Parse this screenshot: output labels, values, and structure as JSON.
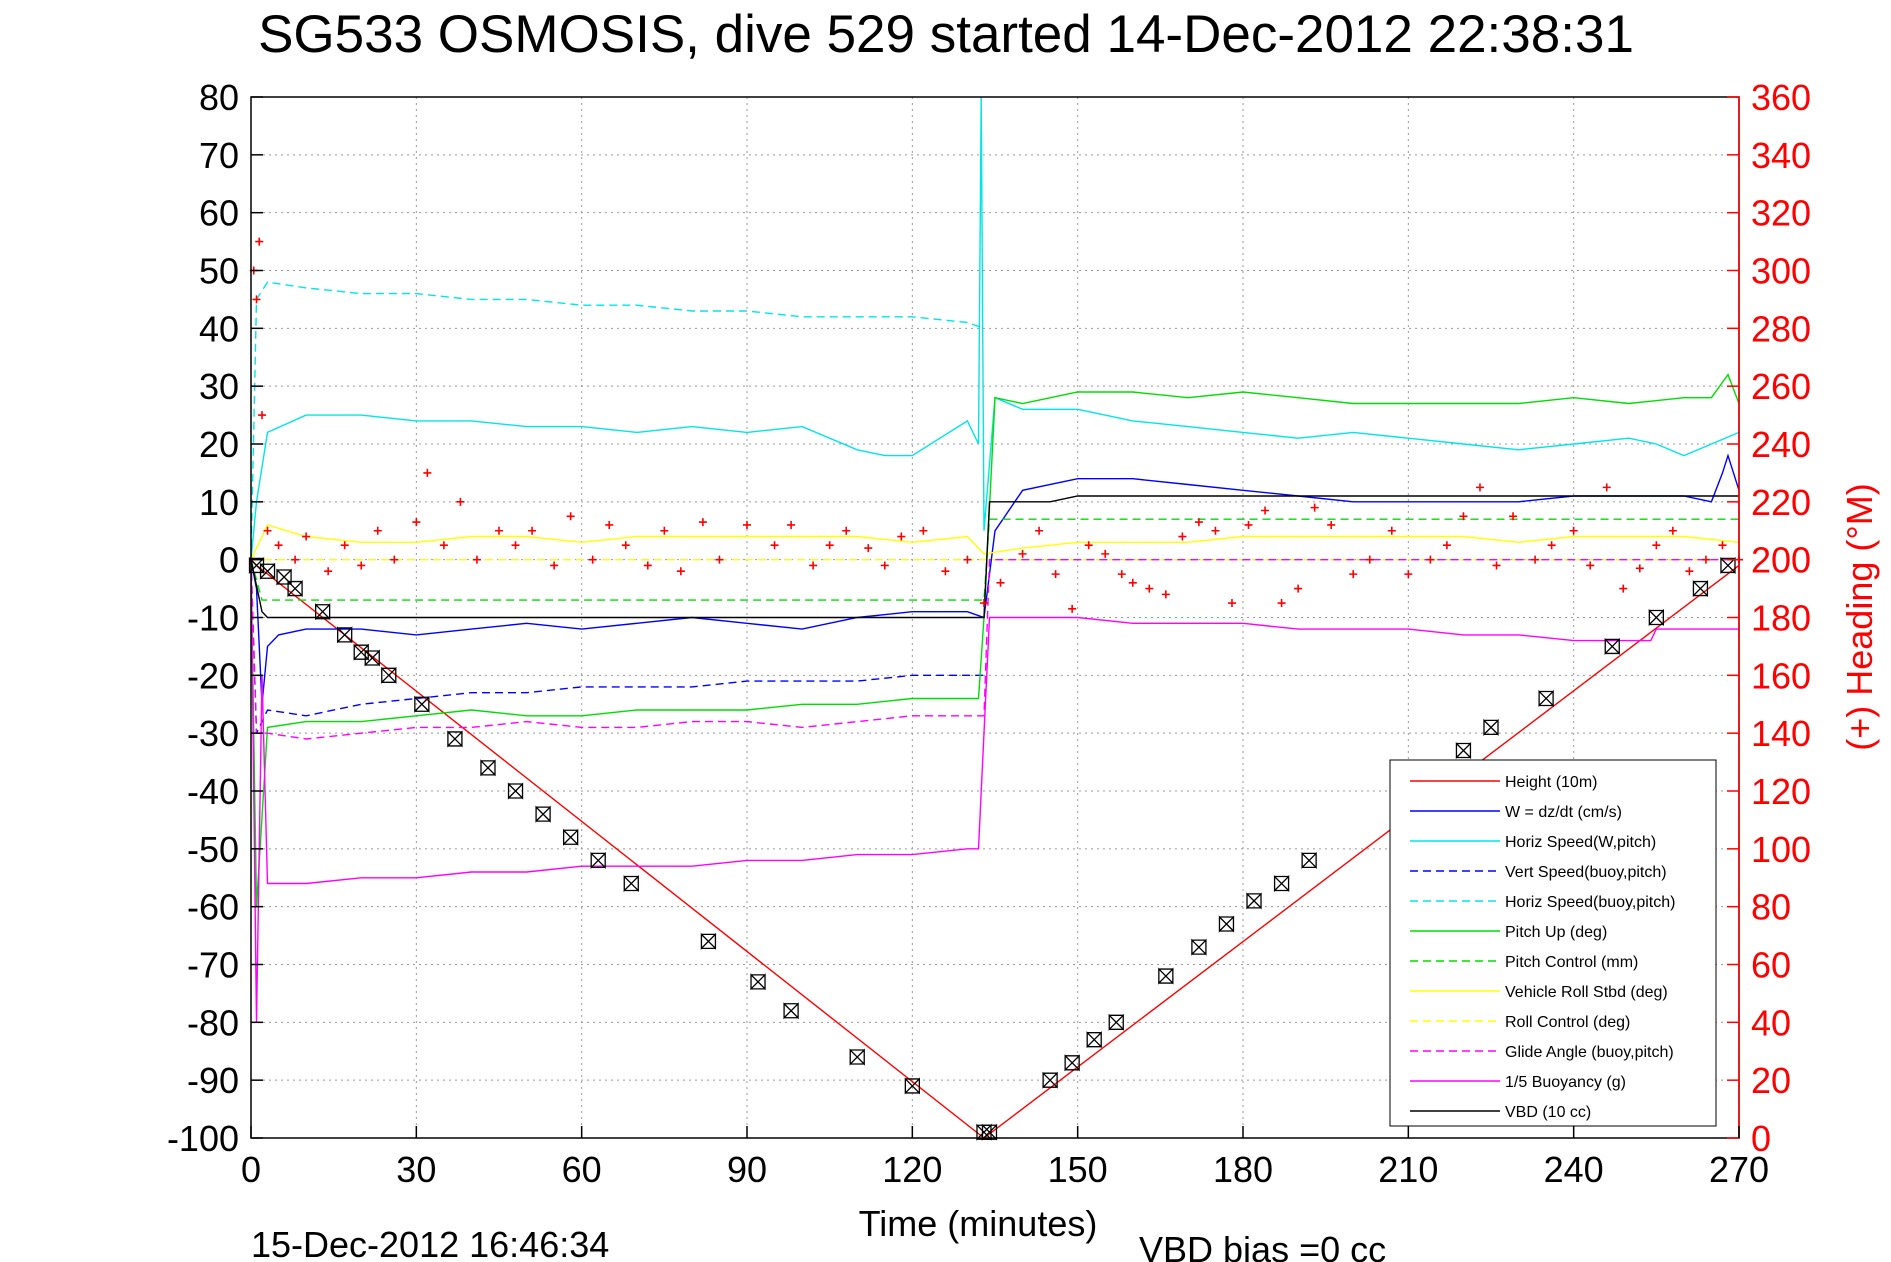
{
  "chart_data": {
    "type": "line",
    "title": "SG533 OSMOSIS, dive 529 started 14-Dec-2012 22:38:31",
    "xlabel": "Time (minutes)",
    "ylabel": "",
    "ylabel_right": "(+) Heading (°M)",
    "xlim": [
      0,
      270
    ],
    "ylim": [
      -100,
      80
    ],
    "ylim_right": [
      0,
      360
    ],
    "xticks": [
      "0",
      "30",
      "60",
      "90",
      "120",
      "150",
      "180",
      "210",
      "240",
      "270"
    ],
    "yticks": [
      "80",
      "70",
      "60",
      "50",
      "40",
      "30",
      "20",
      "10",
      "0",
      "-10",
      "-20",
      "-30",
      "-40",
      "-50",
      "-60",
      "-70",
      "-80",
      "-90",
      "-100"
    ],
    "yticks_right": [
      "360",
      "340",
      "320",
      "300",
      "280",
      "260",
      "240",
      "220",
      "200",
      "180",
      "160",
      "140",
      "120",
      "100",
      "80",
      "60",
      "40",
      "20",
      "0"
    ],
    "grid": true,
    "legend_position": "bottom-right",
    "footer_left": "15-Dec-2012 16:46:34",
    "footer_right": "VBD bias =0 cc",
    "series": [
      {
        "name": "Height (10m)",
        "color": "#ff0000",
        "style": "solid",
        "x": [
          0,
          1,
          133,
          270
        ],
        "y": [
          0,
          -1,
          -100,
          -1
        ]
      },
      {
        "name": "W = dz/dt (cm/s)",
        "color": "#0000ff",
        "style": "solid",
        "x": [
          0,
          1,
          2,
          3,
          5,
          10,
          20,
          30,
          40,
          50,
          60,
          70,
          80,
          90,
          100,
          110,
          120,
          130,
          133,
          135,
          140,
          150,
          160,
          170,
          180,
          190,
          200,
          210,
          220,
          230,
          240,
          250,
          260,
          265,
          267,
          268,
          270
        ],
        "y": [
          0,
          -5,
          -25,
          -15,
          -13,
          -12,
          -12,
          -13,
          -12,
          -11,
          -12,
          -11,
          -10,
          -11,
          -12,
          -10,
          -9,
          -9,
          -10,
          5,
          12,
          14,
          14,
          13,
          12,
          11,
          10,
          10,
          10,
          10,
          11,
          11,
          11,
          10,
          15,
          18,
          12
        ]
      },
      {
        "name": "Horiz Speed(W,pitch)",
        "color": "#00e5e5",
        "style": "solid",
        "x": [
          0,
          1,
          3,
          10,
          20,
          30,
          40,
          50,
          60,
          70,
          80,
          90,
          100,
          110,
          115,
          120,
          130,
          132,
          132.5,
          133,
          135,
          140,
          150,
          160,
          170,
          180,
          190,
          200,
          210,
          220,
          230,
          240,
          250,
          255,
          260,
          265,
          270
        ],
        "y": [
          0,
          10,
          22,
          25,
          25,
          24,
          24,
          23,
          23,
          22,
          23,
          22,
          23,
          19,
          18,
          18,
          24,
          20,
          80,
          5,
          28,
          26,
          26,
          24,
          23,
          22,
          21,
          22,
          21,
          20,
          19,
          20,
          21,
          20,
          18,
          20,
          22
        ]
      },
      {
        "name": "Vert Speed(buoy,pitch)",
        "color": "#0000ff",
        "style": "dashed",
        "x": [
          0,
          1,
          3,
          10,
          20,
          30,
          40,
          50,
          60,
          70,
          80,
          90,
          100,
          110,
          120,
          130,
          133
        ],
        "y": [
          0,
          -30,
          -26,
          -27,
          -25,
          -24,
          -23,
          -23,
          -22,
          -22,
          -22,
          -21,
          -21,
          -21,
          -20,
          -20,
          -20
        ]
      },
      {
        "name": "Horiz Speed(buoy,pitch)",
        "color": "#00e5e5",
        "style": "dashed",
        "x": [
          0,
          1,
          3,
          10,
          20,
          30,
          40,
          50,
          60,
          70,
          80,
          90,
          100,
          110,
          120,
          130,
          133
        ],
        "y": [
          0,
          45,
          48,
          47,
          46,
          46,
          45,
          45,
          44,
          44,
          43,
          43,
          42,
          42,
          42,
          41,
          40
        ]
      },
      {
        "name": "Pitch Up (deg)",
        "color": "#00dd00",
        "style": "solid",
        "x": [
          0,
          1,
          3,
          10,
          20,
          30,
          40,
          50,
          60,
          70,
          80,
          90,
          100,
          110,
          120,
          130,
          132,
          133,
          135,
          140,
          150,
          160,
          170,
          180,
          190,
          200,
          210,
          220,
          230,
          240,
          250,
          260,
          265,
          268,
          270
        ],
        "y": [
          0,
          -60,
          -29,
          -28,
          -28,
          -27,
          -26,
          -27,
          -27,
          -26,
          -26,
          -26,
          -25,
          -25,
          -24,
          -24,
          -24,
          -10,
          28,
          27,
          29,
          29,
          28,
          29,
          28,
          27,
          27,
          27,
          27,
          28,
          27,
          28,
          28,
          32,
          27
        ]
      },
      {
        "name": "Pitch Control (mm)",
        "color": "#00dd00",
        "style": "dashed",
        "x": [
          0,
          2,
          133,
          134,
          270
        ],
        "y": [
          0,
          -7,
          -7,
          7,
          7
        ]
      },
      {
        "name": "Vehicle Roll Stbd (deg)",
        "color": "#ffff00",
        "style": "solid",
        "x": [
          0,
          3,
          10,
          20,
          30,
          40,
          50,
          60,
          70,
          80,
          90,
          100,
          110,
          120,
          130,
          133,
          140,
          150,
          160,
          170,
          180,
          190,
          200,
          210,
          220,
          230,
          240,
          250,
          260,
          270
        ],
        "y": [
          0,
          6,
          4,
          3,
          3,
          4,
          4,
          3,
          4,
          4,
          4,
          4,
          4,
          3,
          4,
          1,
          2,
          3,
          3,
          3,
          4,
          4,
          4,
          4,
          4,
          3,
          4,
          4,
          4,
          3
        ]
      },
      {
        "name": "Roll Control (deg)",
        "color": "#ffff00",
        "style": "dashed",
        "x": [
          0,
          3,
          133,
          270
        ],
        "y": [
          0,
          0,
          0,
          0
        ]
      },
      {
        "name": "Glide Angle (buoy,pitch)",
        "color": "#ff00ff",
        "style": "dashed",
        "x": [
          0,
          1,
          3,
          10,
          20,
          30,
          40,
          50,
          60,
          70,
          80,
          90,
          100,
          110,
          120,
          130,
          133,
          134,
          270
        ],
        "y": [
          0,
          -30,
          -30,
          -31,
          -30,
          -29,
          -29,
          -28,
          -29,
          -29,
          -28,
          -28,
          -29,
          -28,
          -27,
          -27,
          -27,
          0,
          0
        ]
      },
      {
        "name": "1/5 Buoyancy (g)",
        "color": "#ff00ff",
        "style": "solid",
        "x": [
          0,
          1,
          2,
          3,
          10,
          20,
          30,
          40,
          50,
          60,
          70,
          80,
          90,
          100,
          110,
          120,
          130,
          132,
          134,
          140,
          150,
          160,
          170,
          180,
          190,
          200,
          210,
          220,
          230,
          240,
          250,
          254,
          255,
          260,
          265,
          270
        ],
        "y": [
          0,
          -80,
          -20,
          -56,
          -56,
          -55,
          -55,
          -54,
          -54,
          -53,
          -53,
          -53,
          -52,
          -52,
          -51,
          -51,
          -50,
          -50,
          -10,
          -10,
          -10,
          -11,
          -11,
          -11,
          -12,
          -12,
          -12,
          -13,
          -13,
          -14,
          -14,
          -14,
          -12,
          -12,
          -12,
          -12
        ]
      },
      {
        "name": "VBD (10 cc)",
        "color": "#000000",
        "style": "solid",
        "x": [
          0,
          2,
          3,
          133,
          134,
          145,
          150,
          270
        ],
        "y": [
          0,
          -9,
          -10,
          -10,
          10,
          10,
          11,
          11
        ]
      }
    ],
    "heading_points": {
      "name": "Heading (°M)",
      "color": "#ff0000",
      "axis": "right",
      "x": [
        0.5,
        1,
        1.5,
        2,
        3,
        5,
        8,
        10,
        14,
        17,
        20,
        23,
        26,
        30,
        32,
        35,
        38,
        41,
        45,
        48,
        51,
        55,
        58,
        62,
        65,
        68,
        72,
        75,
        78,
        82,
        85,
        90,
        95,
        98,
        102,
        105,
        108,
        112,
        115,
        118,
        122,
        126,
        130,
        133,
        136,
        140,
        143,
        146,
        149,
        152,
        155,
        158,
        160,
        163,
        166,
        169,
        172,
        175,
        178,
        181,
        184,
        187,
        190,
        193,
        196,
        200,
        203,
        207,
        210,
        214,
        217,
        220,
        223,
        226,
        229,
        233,
        236,
        240,
        243,
        246,
        249,
        252,
        255,
        258,
        261,
        264,
        267,
        270
      ],
      "y": [
        300,
        290,
        310,
        250,
        210,
        205,
        200,
        208,
        196,
        205,
        198,
        210,
        200,
        213,
        230,
        205,
        220,
        200,
        210,
        205,
        210,
        198,
        215,
        200,
        212,
        205,
        198,
        210,
        196,
        213,
        200,
        212,
        205,
        212,
        198,
        205,
        210,
        204,
        198,
        208,
        210,
        196,
        200,
        185,
        192,
        202,
        210,
        195,
        183,
        205,
        202,
        195,
        192,
        190,
        188,
        208,
        213,
        210,
        185,
        212,
        217,
        185,
        190,
        218,
        212,
        195,
        200,
        210,
        195,
        200,
        205,
        215,
        225,
        198,
        215,
        200,
        205,
        210,
        198,
        225,
        190,
        197,
        205,
        210,
        196,
        200,
        205,
        200
      ]
    },
    "depth_markers": {
      "symbol": "bowtie-box",
      "color": "#000000",
      "x": [
        1,
        3,
        6,
        8,
        13,
        17,
        20,
        22,
        25,
        31,
        37,
        43,
        48,
        53,
        58,
        63,
        69,
        83,
        92,
        98,
        110,
        120,
        133,
        134,
        145,
        149,
        153,
        157,
        166,
        172,
        177,
        182,
        187,
        192,
        220,
        225,
        235,
        247,
        255,
        263,
        268
      ],
      "y": [
        -1,
        -2,
        -3,
        -5,
        -9,
        -13,
        -16,
        -17,
        -20,
        -25,
        -31,
        -36,
        -40,
        -44,
        -48,
        -52,
        -56,
        -66,
        -73,
        -78,
        -86,
        -91,
        -99,
        -99,
        -90,
        -87,
        -83,
        -80,
        -72,
        -67,
        -63,
        -59,
        -56,
        -52,
        -33,
        -29,
        -24,
        -15,
        -10,
        -5,
        -1
      ]
    }
  }
}
